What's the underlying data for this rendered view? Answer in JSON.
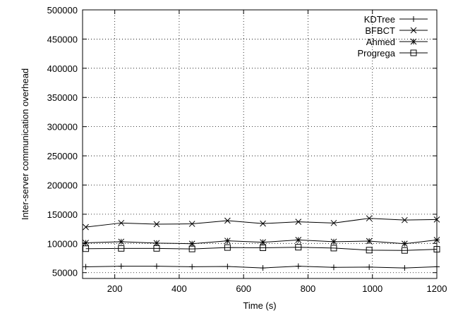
{
  "chart_data": {
    "type": "line",
    "xlabel": "Time (s)",
    "ylabel": "Inter-server communication overhead",
    "xlim": [
      100,
      1200
    ],
    "ylim": [
      40000,
      500000
    ],
    "xticks": [
      200,
      400,
      600,
      800,
      1000,
      1200
    ],
    "yticks": [
      50000,
      100000,
      150000,
      200000,
      250000,
      300000,
      350000,
      400000,
      450000,
      500000
    ],
    "grid": true,
    "legend_position": "top-right",
    "x": [
      110,
      220,
      330,
      440,
      550,
      660,
      770,
      880,
      990,
      1100,
      1200
    ],
    "series": [
      {
        "name": "KDTree",
        "marker": "plus",
        "values": [
          60000,
          61000,
          61000,
          60000,
          60500,
          58000,
          61000,
          59000,
          59500,
          58000,
          60000
        ]
      },
      {
        "name": "BFBCT",
        "marker": "cross",
        "values": [
          128000,
          135000,
          133000,
          133500,
          139000,
          134000,
          137000,
          135000,
          143000,
          140000,
          141000
        ]
      },
      {
        "name": "Ahmed",
        "marker": "star",
        "values": [
          101000,
          103000,
          100500,
          99500,
          104500,
          102000,
          106000,
          103000,
          104000,
          99500,
          106000
        ]
      },
      {
        "name": "Progrega",
        "marker": "square",
        "values": [
          91000,
          91500,
          91500,
          90500,
          93000,
          92500,
          93500,
          92000,
          88500,
          88000,
          90000
        ]
      }
    ]
  }
}
